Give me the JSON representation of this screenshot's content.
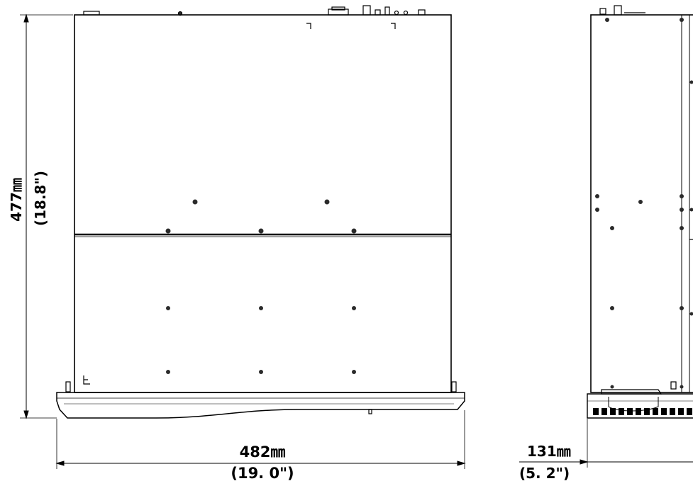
{
  "dimensions": {
    "depth_mm": "477㎜",
    "depth_in": "(18.8\")",
    "width_mm": "482㎜",
    "width_in": "(19. 0\")",
    "height_mm": "131㎜",
    "height_in": "(5. 2\")"
  },
  "colors": {
    "line": "#000000",
    "fill": "#ffffff",
    "screw": "#2b2b2b"
  }
}
